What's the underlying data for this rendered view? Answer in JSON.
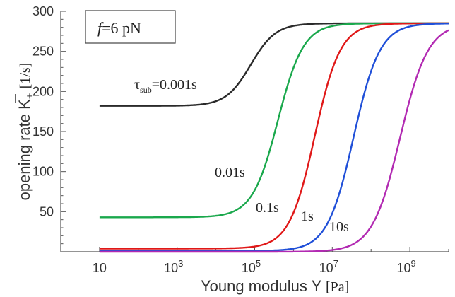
{
  "chart_data": {
    "type": "line",
    "x_scale": "log",
    "xlim": [
      1,
      10000000000.0
    ],
    "ylim": [
      0,
      300
    ],
    "xlabel_main": "Young modulus Y",
    "xlabel_unit": "[Pa]",
    "ylabel_main": "opening rate",
    "ylabel_symbol": "K",
    "ylabel_sub": "+",
    "ylabel_unit": "[1/s]",
    "x_ticks": [
      {
        "base": "10",
        "exp": ""
      },
      {
        "base": "10",
        "exp": "3"
      },
      {
        "base": "10",
        "exp": "5"
      },
      {
        "base": "10",
        "exp": "7"
      },
      {
        "base": "10",
        "exp": "9"
      }
    ],
    "x_tick_values": [
      10,
      1000,
      100000,
      10000000,
      1000000000
    ],
    "y_ticks": [
      "50",
      "100",
      "150",
      "200",
      "250",
      "300"
    ],
    "y_tick_values": [
      50,
      100,
      150,
      200,
      250,
      300
    ],
    "force_box": {
      "var": "f",
      "rest": "=6 pN"
    },
    "series": [
      {
        "name": "0.001s",
        "color": "#2a2a2a",
        "low": 182,
        "high": 285,
        "mid_log10": 4.9,
        "width": 0.32,
        "label": {
          "main": "τ",
          "sub": "sub",
          "rest": "=0.001s"
        }
      },
      {
        "name": "0.01s",
        "color": "#1aa84c",
        "low": 43,
        "high": 285,
        "mid_log10": 5.6,
        "width": 0.33,
        "label": {
          "main": "",
          "sub": "",
          "rest": "0.01s"
        }
      },
      {
        "name": "0.1s",
        "color": "#e01818",
        "low": 4,
        "high": 285,
        "mid_log10": 6.55,
        "width": 0.33,
        "label": {
          "main": "",
          "sub": "",
          "rest": "0.1s"
        }
      },
      {
        "name": "1s",
        "color": "#1f4fd8",
        "low": 1,
        "high": 285,
        "mid_log10": 7.55,
        "width": 0.34,
        "label": {
          "main": "",
          "sub": "",
          "rest": "1s"
        }
      },
      {
        "name": "10s",
        "color": "#b22ab2",
        "low": 0,
        "high": 285,
        "mid_log10": 8.75,
        "width": 0.36,
        "label": {
          "main": "",
          "sub": "",
          "rest": "10s"
        }
      }
    ],
    "grid": false,
    "legend": "none"
  }
}
